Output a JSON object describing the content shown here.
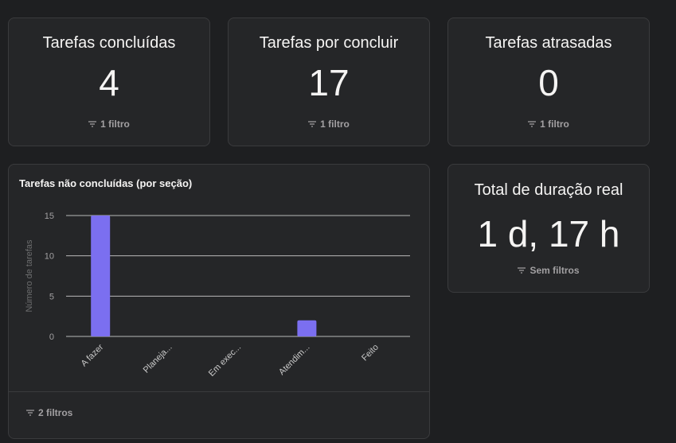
{
  "stat_cards": [
    {
      "title": "Tarefas concluídas",
      "value": "4",
      "filter": "1 filtro"
    },
    {
      "title": "Tarefas por concluir",
      "value": "17",
      "filter": "1 filtro"
    },
    {
      "title": "Tarefas atrasadas",
      "value": "0",
      "filter": "1 filtro"
    }
  ],
  "duration_card": {
    "title": "Total de duração real",
    "value": "1 d, 17 h",
    "filter": "Sem filtros"
  },
  "chart_card": {
    "filter": "2 filtros"
  },
  "colors": {
    "bar": "#7b6ff0",
    "background": "#1e1f21",
    "card": "#252628",
    "border": "#3a3b3d"
  },
  "icons": {
    "filter": "filter-icon"
  },
  "chart_data": {
    "type": "bar",
    "title": "Tarefas não concluídas (por seção)",
    "xlabel": "",
    "ylabel": "Número de tarefas",
    "categories": [
      "A fazer",
      "Planeja...",
      "Em exec...",
      "Atendim...",
      "Feito"
    ],
    "values": [
      15,
      0,
      0,
      2,
      0
    ],
    "ylim": [
      0,
      15
    ],
    "yticks": [
      0,
      5,
      10,
      15
    ],
    "grid": true,
    "legend": "none"
  }
}
